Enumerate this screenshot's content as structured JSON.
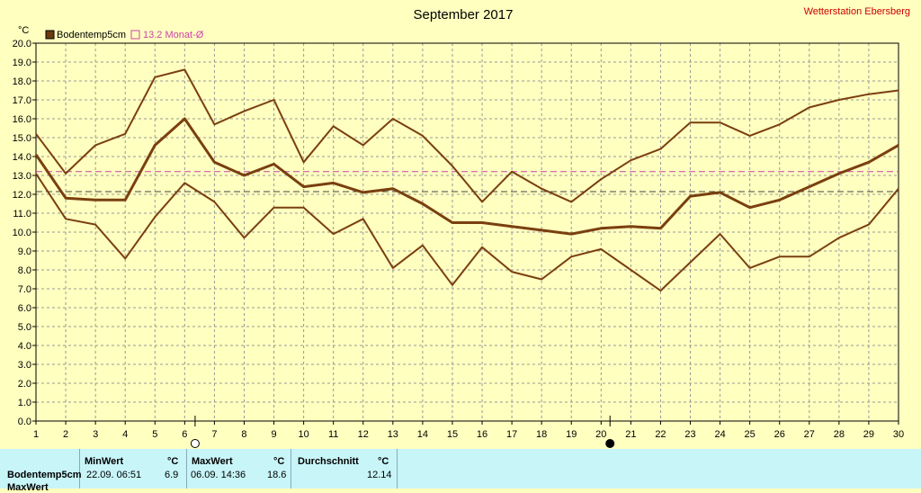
{
  "header": {
    "title": "September 2017",
    "station": "Wetterstation Ebersberg",
    "unit_label": "°C"
  },
  "legend": {
    "series_label": "Bodentemp5cm",
    "avg_label": "13.2 Monat-Ø"
  },
  "colors": {
    "background": "#ffffc0",
    "series": "#7a3f0f",
    "avg_line": "#cc44aa",
    "ref_line": "#444444",
    "grid": "#999999",
    "table_bg": "#c8f5f8"
  },
  "moon_markers": [
    {
      "day": 6.35,
      "icon": "full-moon-icon"
    },
    {
      "day": 20.3,
      "icon": "new-moon-icon"
    }
  ],
  "chart_data": {
    "type": "line",
    "title": "September 2017",
    "ylabel": "°C",
    "ylim": [
      0,
      20
    ],
    "y_ticks": [
      "0.0",
      "1.0",
      "2.0",
      "3.0",
      "4.0",
      "5.0",
      "6.0",
      "7.0",
      "8.0",
      "9.0",
      "10.0",
      "11.0",
      "12.0",
      "13.0",
      "14.0",
      "15.0",
      "16.0",
      "17.0",
      "18.0",
      "19.0",
      "20.0"
    ],
    "x": [
      1,
      2,
      3,
      4,
      5,
      6,
      7,
      8,
      9,
      10,
      11,
      12,
      13,
      14,
      15,
      16,
      17,
      18,
      19,
      20,
      21,
      22,
      23,
      24,
      25,
      26,
      27,
      28,
      29,
      30
    ],
    "grid": true,
    "series": [
      {
        "name": "Bodentemp5cm",
        "role": "mean",
        "values": [
          14.1,
          11.8,
          11.7,
          11.7,
          14.6,
          16.0,
          13.7,
          13.0,
          13.6,
          12.4,
          12.6,
          12.1,
          12.3,
          11.5,
          10.5,
          10.5,
          10.3,
          10.1,
          9.9,
          10.2,
          10.3,
          10.2,
          11.9,
          12.1,
          11.3,
          11.7,
          12.4,
          13.1,
          13.7,
          14.6
        ]
      },
      {
        "role": "max",
        "values": [
          15.2,
          13.1,
          14.6,
          15.2,
          18.2,
          18.6,
          15.7,
          16.4,
          17.0,
          13.7,
          15.6,
          14.6,
          16.0,
          15.1,
          13.5,
          11.6,
          13.2,
          12.3,
          11.6,
          12.8,
          13.8,
          14.4,
          15.8,
          15.8,
          15.1,
          15.7,
          16.6,
          17.0,
          17.3,
          17.5
        ]
      },
      {
        "role": "min",
        "values": [
          13.1,
          10.7,
          10.4,
          8.6,
          10.8,
          12.6,
          11.6,
          9.7,
          11.3,
          11.3,
          9.9,
          10.7,
          8.1,
          9.3,
          7.2,
          9.2,
          7.9,
          7.5,
          8.7,
          9.1,
          8.0,
          6.9,
          8.4,
          9.9,
          8.1,
          8.7,
          8.7,
          9.7,
          10.4,
          12.3
        ]
      }
    ],
    "reference_lines": [
      {
        "name": "13.2 Monat-Ø",
        "value": 13.2,
        "style": "dashed",
        "color": "#cc44aa"
      },
      {
        "value": 12.14,
        "style": "dashed",
        "color": "#444444"
      }
    ]
  },
  "table": {
    "row_label": "Bodentemp5cm",
    "row2_label": "MaxWert",
    "min_header": "MinWert",
    "min_unit": "°C",
    "min_when": "22.09.  06:51",
    "min_value": "6.9",
    "max_header": "MaxWert",
    "max_unit": "°C",
    "max_when": "06.09.  14:36",
    "max_value": "18.6",
    "avg_header": "Durchschnitt",
    "avg_unit": "°C",
    "avg_value": "12.14"
  }
}
